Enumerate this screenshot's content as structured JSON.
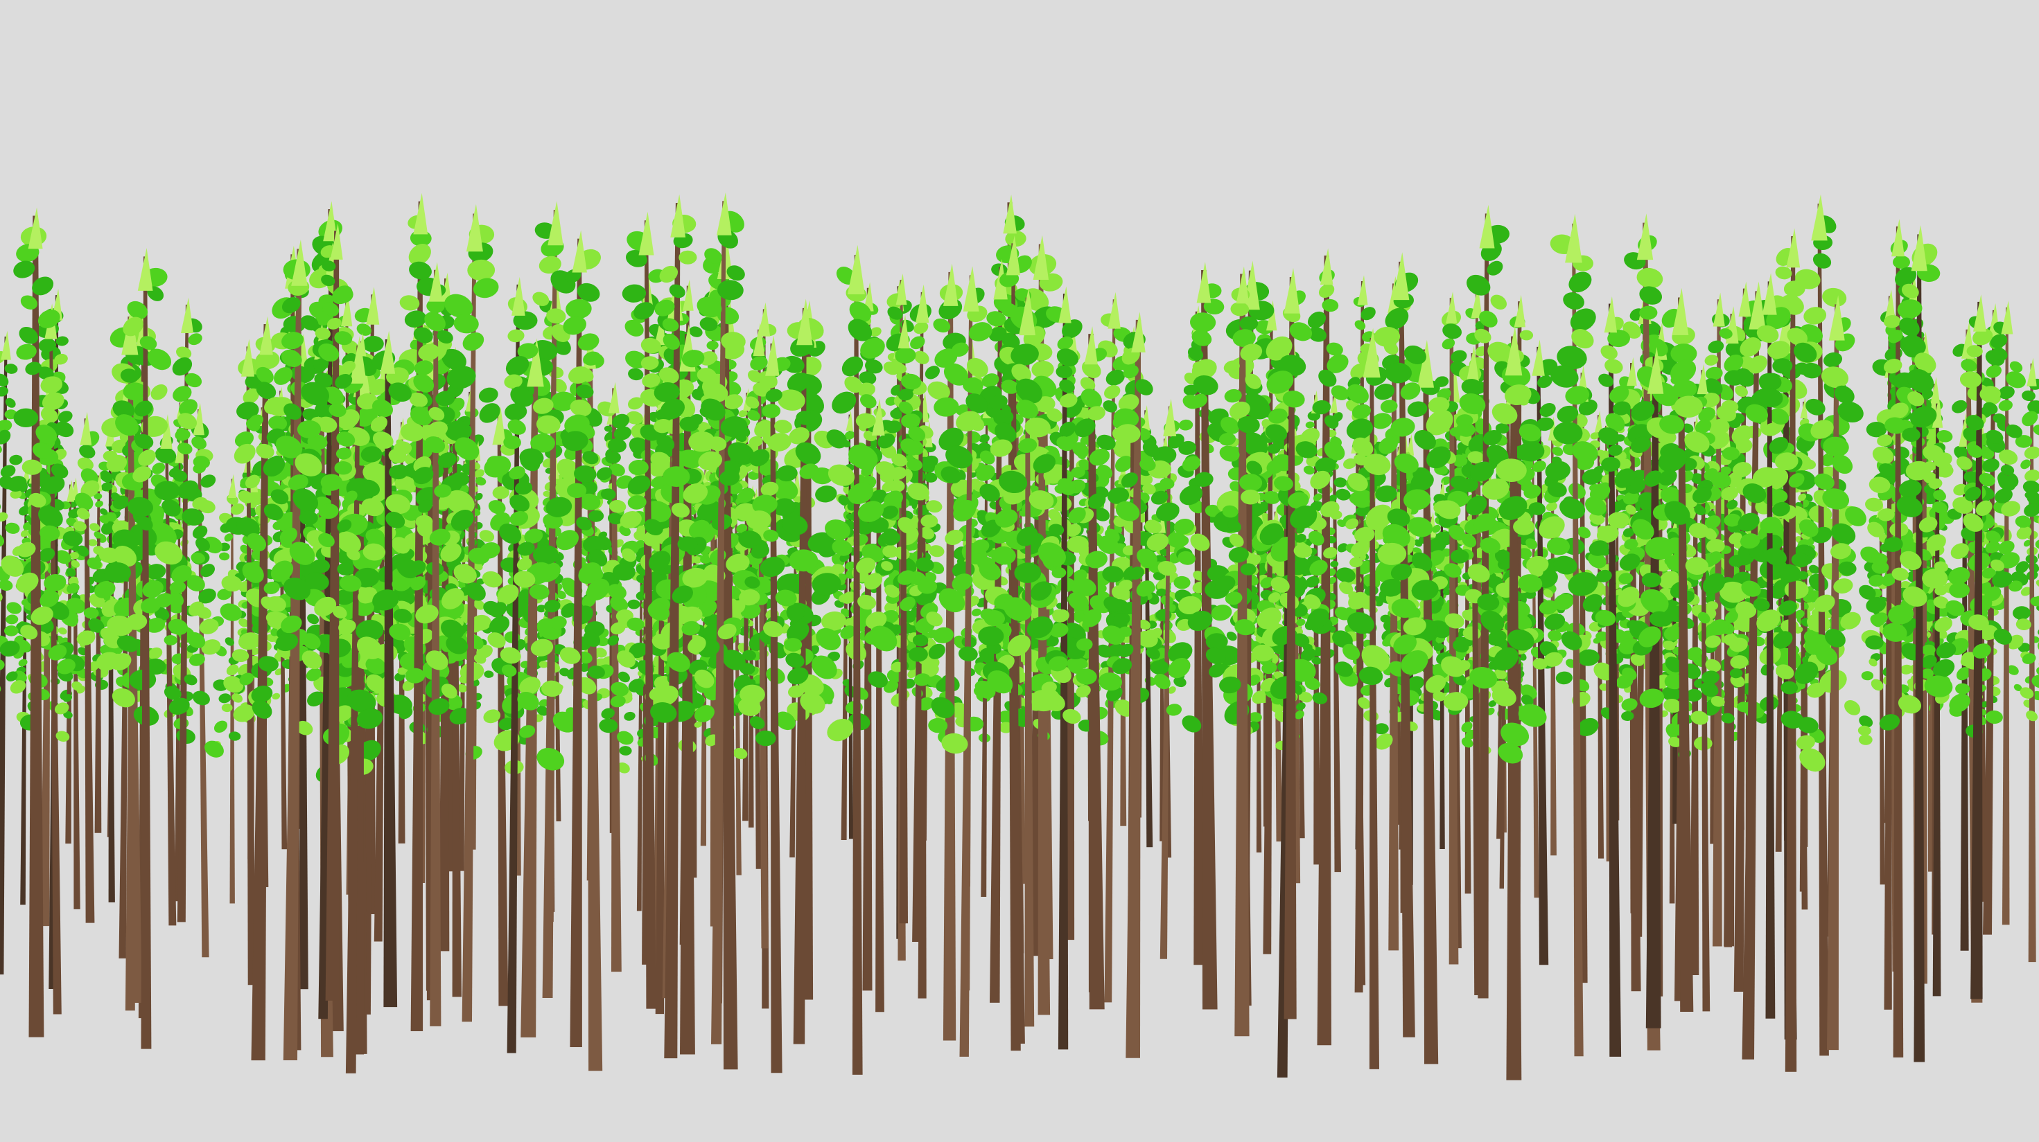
{
  "scene": {
    "background_color": "#dcdcdc",
    "subject": "forest-of-tall-thin-trees",
    "colors": {
      "trunk": "#6b4a35",
      "trunk_dark": "#4a3527",
      "trunk_light": "#7d5a42",
      "leaf_dark": "#2fb515",
      "leaf_mid": "#4fd21f",
      "leaf_light": "#8ae63a",
      "leaf_tip": "#b4f060"
    }
  }
}
